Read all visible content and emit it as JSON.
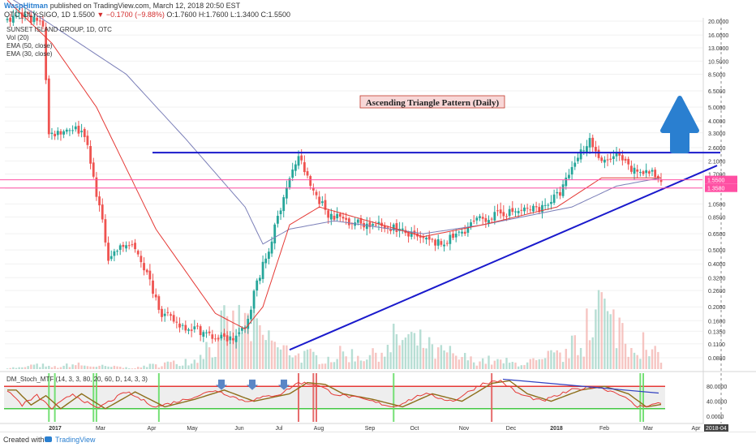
{
  "header": {
    "user": "WaspHitman",
    "published": "published on TradingView.com, March 12, 2018 20:50 EST",
    "symbol": "OTC_DLY:SIGO, 1D",
    "last": "1.5500",
    "change": "▼ −0.1700 (−9.88%)",
    "ohlc": "O:1.7600 H:1.7600 L:1.3400 C:1.5500"
  },
  "legend": {
    "name": "SUNSET ISLAND GROUP, 1D, OTC",
    "vol": "Vol (20)",
    "ema50": "EMA (50, close)",
    "ema30": "EMA (30, close)",
    "stoch": "DM_Stoch_MTF (14, 3, 3, 80, 20, 60, D, 14, 3, 3)"
  },
  "annotation": "Ascending Triangle Pattern (Daily)",
  "footer": {
    "created": "Created with",
    "brand": "TradingView"
  },
  "colors": {
    "up": "#26a69a",
    "down": "#ef5350",
    "ema50": "#7b7fb8",
    "ema30": "#e53935",
    "trendline": "#1a1acc",
    "support": "#ff4fa3",
    "arrow": "#2a7fd0",
    "stoch_k": "#e53935",
    "stoch_d": "#8d6e1a",
    "stoch_down_line": "#3040c0"
  },
  "chart_data": {
    "type": "candlestick",
    "scale": "log",
    "title": "SUNSET ISLAND GROUP, 1D, OTC",
    "x_ticks": [
      "2017",
      "Mar",
      "Apr",
      "May",
      "Jun",
      "Jul",
      "Aug",
      "Sep",
      "Oct",
      "Nov",
      "Dec",
      "2018",
      "Feb",
      "Mar",
      "Apr",
      "2018-04"
    ],
    "y_ticks": [
      20.0,
      16.0,
      13.0,
      10.5,
      8.5,
      6.5,
      5.0,
      4.0,
      3.3,
      2.6,
      2.1,
      1.7,
      1.35,
      1.05,
      0.85,
      0.65,
      0.5,
      0.4,
      0.32,
      0.26,
      0.2,
      0.16,
      0.135,
      0.11,
      0.088
    ],
    "price_labels": [
      "1.5500",
      "1.3580"
    ],
    "stoch_ticks": [
      "80.0000",
      "40.0000",
      "0.0000"
    ],
    "stoch_levels": [
      80,
      20
    ],
    "resistance": 2.4,
    "support_lines": [
      1.55,
      1.358
    ],
    "ascending_trendline": {
      "start": [
        "Jul",
        0.1
      ],
      "end": [
        "Apr",
        1.95
      ]
    },
    "price_anchors": [
      [
        0,
        20
      ],
      [
        6,
        22
      ],
      [
        12,
        19
      ],
      [
        13,
        8
      ],
      [
        14,
        3.2
      ],
      [
        22,
        3.6
      ],
      [
        26,
        3.3
      ],
      [
        28,
        2.0
      ],
      [
        31,
        1.0
      ],
      [
        34,
        0.45
      ],
      [
        40,
        0.55
      ],
      [
        44,
        0.48
      ],
      [
        48,
        0.3
      ],
      [
        52,
        0.18
      ],
      [
        58,
        0.15
      ],
      [
        64,
        0.14
      ],
      [
        70,
        0.12
      ],
      [
        76,
        0.12
      ],
      [
        80,
        0.14
      ],
      [
        84,
        0.3
      ],
      [
        88,
        0.5
      ],
      [
        93,
        1.2
      ],
      [
        98,
        2.3
      ],
      [
        102,
        1.4
      ],
      [
        108,
        0.9
      ],
      [
        115,
        0.8
      ],
      [
        122,
        0.75
      ],
      [
        130,
        0.72
      ],
      [
        138,
        0.6
      ],
      [
        146,
        0.55
      ],
      [
        152,
        0.65
      ],
      [
        158,
        0.8
      ],
      [
        166,
        0.9
      ],
      [
        174,
        0.95
      ],
      [
        180,
        1.0
      ],
      [
        186,
        1.25
      ],
      [
        192,
        2.3
      ],
      [
        196,
        3.0
      ],
      [
        200,
        2.0
      ],
      [
        205,
        2.3
      ],
      [
        210,
        1.8
      ],
      [
        216,
        1.75
      ],
      [
        220,
        1.55
      ]
    ],
    "ema50_anchors": [
      [
        0,
        30
      ],
      [
        20,
        16
      ],
      [
        40,
        8.5
      ],
      [
        60,
        3.0
      ],
      [
        80,
        1.0
      ],
      [
        86,
        0.55
      ],
      [
        95,
        0.7
      ],
      [
        110,
        0.8
      ],
      [
        140,
        0.65
      ],
      [
        160,
        0.75
      ],
      [
        190,
        1.0
      ],
      [
        205,
        1.4
      ],
      [
        220,
        1.6
      ]
    ],
    "ema30_anchors": [
      [
        0,
        28
      ],
      [
        15,
        14
      ],
      [
        30,
        5.0
      ],
      [
        50,
        0.7
      ],
      [
        70,
        0.18
      ],
      [
        80,
        0.14
      ],
      [
        86,
        0.2
      ],
      [
        95,
        0.75
      ],
      [
        105,
        1.0
      ],
      [
        140,
        0.62
      ],
      [
        160,
        0.75
      ],
      [
        185,
        1.0
      ],
      [
        200,
        1.6
      ],
      [
        220,
        1.6
      ]
    ],
    "stoch_k_anchors": [
      [
        0,
        70
      ],
      [
        5,
        30
      ],
      [
        10,
        55
      ],
      [
        15,
        20
      ],
      [
        22,
        60
      ],
      [
        30,
        20
      ],
      [
        40,
        65
      ],
      [
        50,
        25
      ],
      [
        60,
        45
      ],
      [
        70,
        70
      ],
      [
        80,
        40
      ],
      [
        92,
        60
      ],
      [
        98,
        90
      ],
      [
        104,
        85
      ],
      [
        110,
        60
      ],
      [
        120,
        45
      ],
      [
        130,
        25
      ],
      [
        140,
        60
      ],
      [
        150,
        40
      ],
      [
        160,
        88
      ],
      [
        166,
        95
      ],
      [
        172,
        60
      ],
      [
        180,
        40
      ],
      [
        190,
        70
      ],
      [
        198,
        80
      ],
      [
        206,
        60
      ],
      [
        212,
        25
      ],
      [
        220,
        35
      ]
    ],
    "volume_profile": [
      2,
      5,
      3,
      6,
      4,
      3,
      2,
      5,
      8,
      12,
      30,
      55,
      60,
      40,
      25,
      18,
      15,
      20,
      18,
      25,
      40,
      35,
      22,
      15,
      12,
      10,
      8,
      10,
      18,
      30,
      85,
      60,
      35,
      20
    ]
  }
}
